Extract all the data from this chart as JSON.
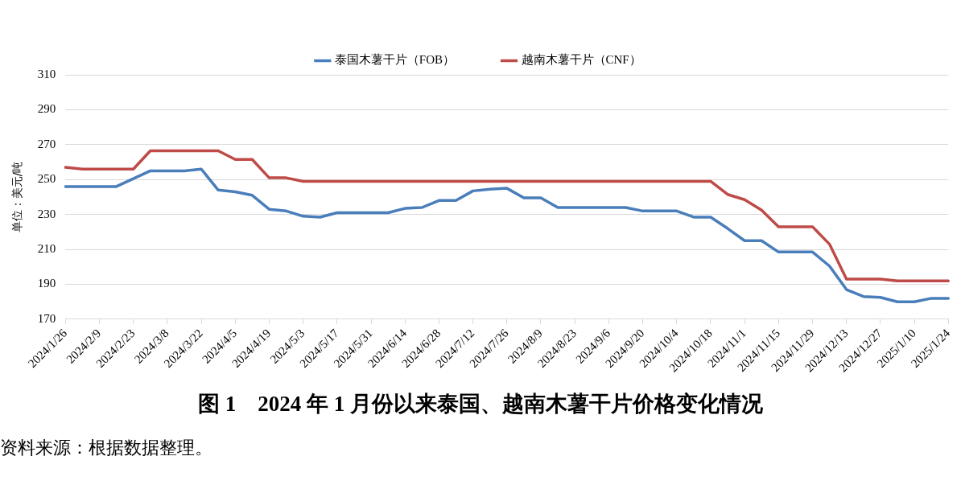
{
  "chart_data": {
    "type": "line",
    "title": "图 1　2024 年 1 月份以来泰国、越南木薯干片价格变化情况",
    "ylabel": "单位：美元/吨",
    "annotations": [
      "资料来源：根据数据整理。"
    ],
    "categories": [
      "2024/1/26",
      null,
      "2024/2/9",
      null,
      "2024/2/23",
      null,
      "2024/3/8",
      null,
      "2024/3/22",
      null,
      "2024/4/5",
      null,
      "2024/4/19",
      null,
      "2024/5/3",
      null,
      "2024/5/17",
      null,
      "2024/5/31",
      null,
      "2024/6/14",
      null,
      "2024/6/28",
      null,
      "2024/7/12",
      null,
      "2024/7/26",
      null,
      "2024/8/9",
      null,
      "2024/8/23",
      null,
      "2024/9/6",
      null,
      "2024/9/20",
      null,
      "2024/10/4",
      null,
      "2024/10/18",
      null,
      "2024/11/1",
      null,
      "2024/11/15",
      null,
      "2024/11/29",
      null,
      "2024/12/13",
      null,
      "2024/12/27",
      null,
      "2025/1/10",
      null,
      "2025/1/24"
    ],
    "series": [
      {
        "name": "泰国木薯干片（FOB）",
        "color": "#4a7ebb",
        "values": [
          246,
          246,
          246,
          246,
          250.5,
          255,
          255,
          255,
          256,
          244,
          243,
          241,
          233,
          232,
          229,
          228.5,
          231,
          231,
          231,
          231,
          233.5,
          234,
          238,
          238,
          243.5,
          244.5,
          245,
          239.5,
          239.5,
          234,
          234,
          234,
          234,
          234,
          232,
          232,
          232,
          228.5,
          228.5,
          222,
          215,
          215,
          208.5,
          208.5,
          208.5,
          200.5,
          187,
          183,
          182.5,
          180,
          180,
          182,
          182
        ]
      },
      {
        "name": "越南木薯干片（CNF）",
        "color": "#be4b48",
        "values": [
          257,
          256,
          256,
          256,
          256,
          266.5,
          266.5,
          266.5,
          266.5,
          266.5,
          261.5,
          261.5,
          251,
          251,
          249,
          249,
          249,
          249,
          249,
          249,
          249,
          249,
          249,
          249,
          249,
          249,
          249,
          249,
          249,
          249,
          249,
          249,
          249,
          249,
          249,
          249,
          249,
          249,
          249,
          241.5,
          238.5,
          232.5,
          223,
          223,
          223,
          213,
          193,
          193,
          193,
          192,
          192,
          192,
          192
        ]
      }
    ],
    "ylim": [
      170,
      310
    ],
    "yticks": [
      170,
      190,
      210,
      230,
      250,
      270,
      290,
      310
    ],
    "grid": "y",
    "legend": "top",
    "marker": "none",
    "line_style": "solid"
  }
}
